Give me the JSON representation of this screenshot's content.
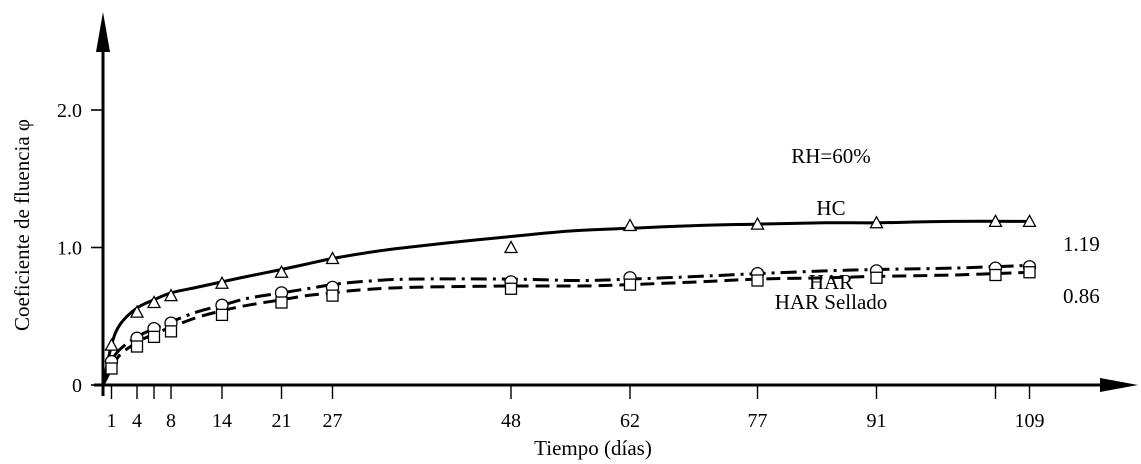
{
  "chart_data": {
    "type": "line",
    "xlabel": "Tiempo (días)",
    "ylabel": "Coeficiente de fluencia φ",
    "xlim": [
      0,
      122
    ],
    "ylim": [
      0,
      2.5
    ],
    "x_ticks": [
      1,
      4,
      8,
      14,
      21,
      27,
      48,
      62,
      77,
      91,
      109
    ],
    "y_ticks": [
      {
        "value": 0,
        "label": "0"
      },
      {
        "value": 1.0,
        "label": "1.0"
      },
      {
        "value": 2.0,
        "label": "2.0"
      }
    ],
    "annotations": {
      "rh": "RH=60%",
      "hc_end": "1.19",
      "har_end": "0.86"
    },
    "series": [
      {
        "name": "HC",
        "marker": "triangle",
        "line_style": "solid",
        "points": [
          [
            1,
            0.29
          ],
          [
            4,
            0.53
          ],
          [
            6,
            0.6
          ],
          [
            8,
            0.65
          ],
          [
            14,
            0.74
          ],
          [
            21,
            0.82
          ],
          [
            27,
            0.92
          ],
          [
            48,
            1.0
          ],
          [
            62,
            1.16
          ],
          [
            77,
            1.17
          ],
          [
            91,
            1.18
          ],
          [
            105,
            1.19
          ],
          [
            109,
            1.19
          ]
        ],
        "curve": [
          [
            0,
            0
          ],
          [
            1,
            0.29
          ],
          [
            2,
            0.44
          ],
          [
            4,
            0.56
          ],
          [
            6,
            0.62
          ],
          [
            8,
            0.67
          ],
          [
            11,
            0.71
          ],
          [
            14,
            0.75
          ],
          [
            17,
            0.79
          ],
          [
            21,
            0.84
          ],
          [
            24,
            0.88
          ],
          [
            27,
            0.92
          ],
          [
            33,
            0.98
          ],
          [
            40,
            1.03
          ],
          [
            48,
            1.08
          ],
          [
            55,
            1.12
          ],
          [
            62,
            1.14
          ],
          [
            70,
            1.16
          ],
          [
            77,
            1.17
          ],
          [
            85,
            1.18
          ],
          [
            91,
            1.18
          ],
          [
            100,
            1.19
          ],
          [
            109,
            1.19
          ]
        ]
      },
      {
        "name": "HAR",
        "marker": "circle",
        "line_style": "dashdot",
        "points": [
          [
            1,
            0.17
          ],
          [
            4,
            0.34
          ],
          [
            6,
            0.41
          ],
          [
            8,
            0.45
          ],
          [
            14,
            0.58
          ],
          [
            21,
            0.67
          ],
          [
            27,
            0.71
          ],
          [
            48,
            0.75
          ],
          [
            62,
            0.78
          ],
          [
            77,
            0.81
          ],
          [
            91,
            0.83
          ],
          [
            105,
            0.85
          ],
          [
            109,
            0.86
          ]
        ],
        "curve": [
          [
            0,
            0
          ],
          [
            1,
            0.17
          ],
          [
            2,
            0.26
          ],
          [
            4,
            0.35
          ],
          [
            6,
            0.41
          ],
          [
            8,
            0.46
          ],
          [
            11,
            0.53
          ],
          [
            14,
            0.58
          ],
          [
            17,
            0.63
          ],
          [
            21,
            0.67
          ],
          [
            24,
            0.7
          ],
          [
            27,
            0.73
          ],
          [
            30,
            0.75
          ],
          [
            36,
            0.77
          ],
          [
            48,
            0.77
          ],
          [
            56,
            0.76
          ],
          [
            62,
            0.77
          ],
          [
            70,
            0.79
          ],
          [
            77,
            0.81
          ],
          [
            85,
            0.83
          ],
          [
            91,
            0.84
          ],
          [
            100,
            0.85
          ],
          [
            109,
            0.87
          ]
        ]
      },
      {
        "name": "HAR Sellado",
        "marker": "square",
        "line_style": "dashed",
        "points": [
          [
            1,
            0.12
          ],
          [
            4,
            0.28
          ],
          [
            6,
            0.35
          ],
          [
            8,
            0.39
          ],
          [
            14,
            0.51
          ],
          [
            21,
            0.6
          ],
          [
            27,
            0.65
          ],
          [
            48,
            0.7
          ],
          [
            62,
            0.73
          ],
          [
            77,
            0.76
          ],
          [
            91,
            0.78
          ],
          [
            105,
            0.8
          ],
          [
            109,
            0.82
          ]
        ],
        "curve": [
          [
            0,
            0
          ],
          [
            1,
            0.12
          ],
          [
            2,
            0.22
          ],
          [
            4,
            0.31
          ],
          [
            6,
            0.37
          ],
          [
            8,
            0.42
          ],
          [
            11,
            0.49
          ],
          [
            14,
            0.54
          ],
          [
            17,
            0.58
          ],
          [
            21,
            0.62
          ],
          [
            24,
            0.65
          ],
          [
            27,
            0.67
          ],
          [
            30,
            0.69
          ],
          [
            36,
            0.71
          ],
          [
            48,
            0.72
          ],
          [
            56,
            0.72
          ],
          [
            62,
            0.73
          ],
          [
            70,
            0.75
          ],
          [
            77,
            0.77
          ],
          [
            85,
            0.78
          ],
          [
            91,
            0.79
          ],
          [
            100,
            0.8
          ],
          [
            109,
            0.82
          ]
        ]
      }
    ]
  }
}
